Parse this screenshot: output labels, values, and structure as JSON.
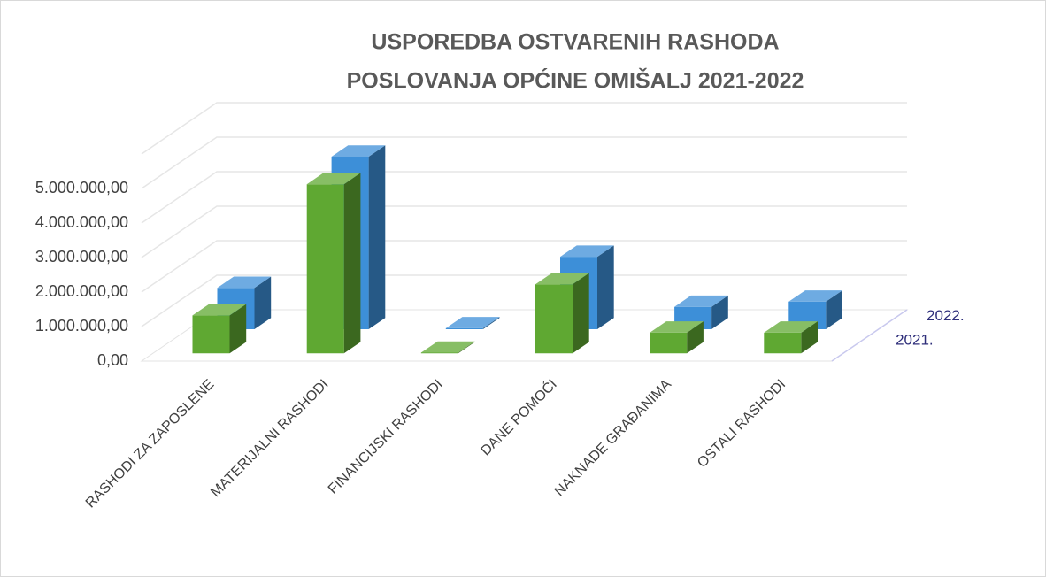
{
  "chart_data": {
    "type": "bar3d",
    "title": [
      "USPOREDBA OSTVARENIH RASHODA",
      "POSLOVANJA OPĆINE OMIŠALJ 2021-2022"
    ],
    "categories": [
      "RASHODI ZA ZAPOSLENE",
      "MATERIJALNI RASHODI",
      "FINANCIJSKI RASHODI",
      "DANE POMOĆI",
      "NAKNADE GRAĐANIMA",
      "OSTALI RASHODI"
    ],
    "series": [
      {
        "name": "2021.",
        "color": "#5fa832",
        "values": [
          1100000,
          4900000,
          20000,
          2000000,
          600000,
          600000
        ]
      },
      {
        "name": "2022.",
        "color": "#3d8fd8",
        "values": [
          1200000,
          5000000,
          30000,
          2100000,
          650000,
          800000
        ]
      }
    ],
    "ylim": [
      0,
      6000000
    ],
    "yticks": [
      {
        "value": 0,
        "label": "0,00"
      },
      {
        "value": 1000000,
        "label": "1.000.000,00"
      },
      {
        "value": 2000000,
        "label": "2.000.000,00"
      },
      {
        "value": 3000000,
        "label": "3.000.000,00"
      },
      {
        "value": 4000000,
        "label": "4.000.000,00"
      },
      {
        "value": 5000000,
        "label": "5.000.000,00"
      }
    ],
    "grid": true
  }
}
